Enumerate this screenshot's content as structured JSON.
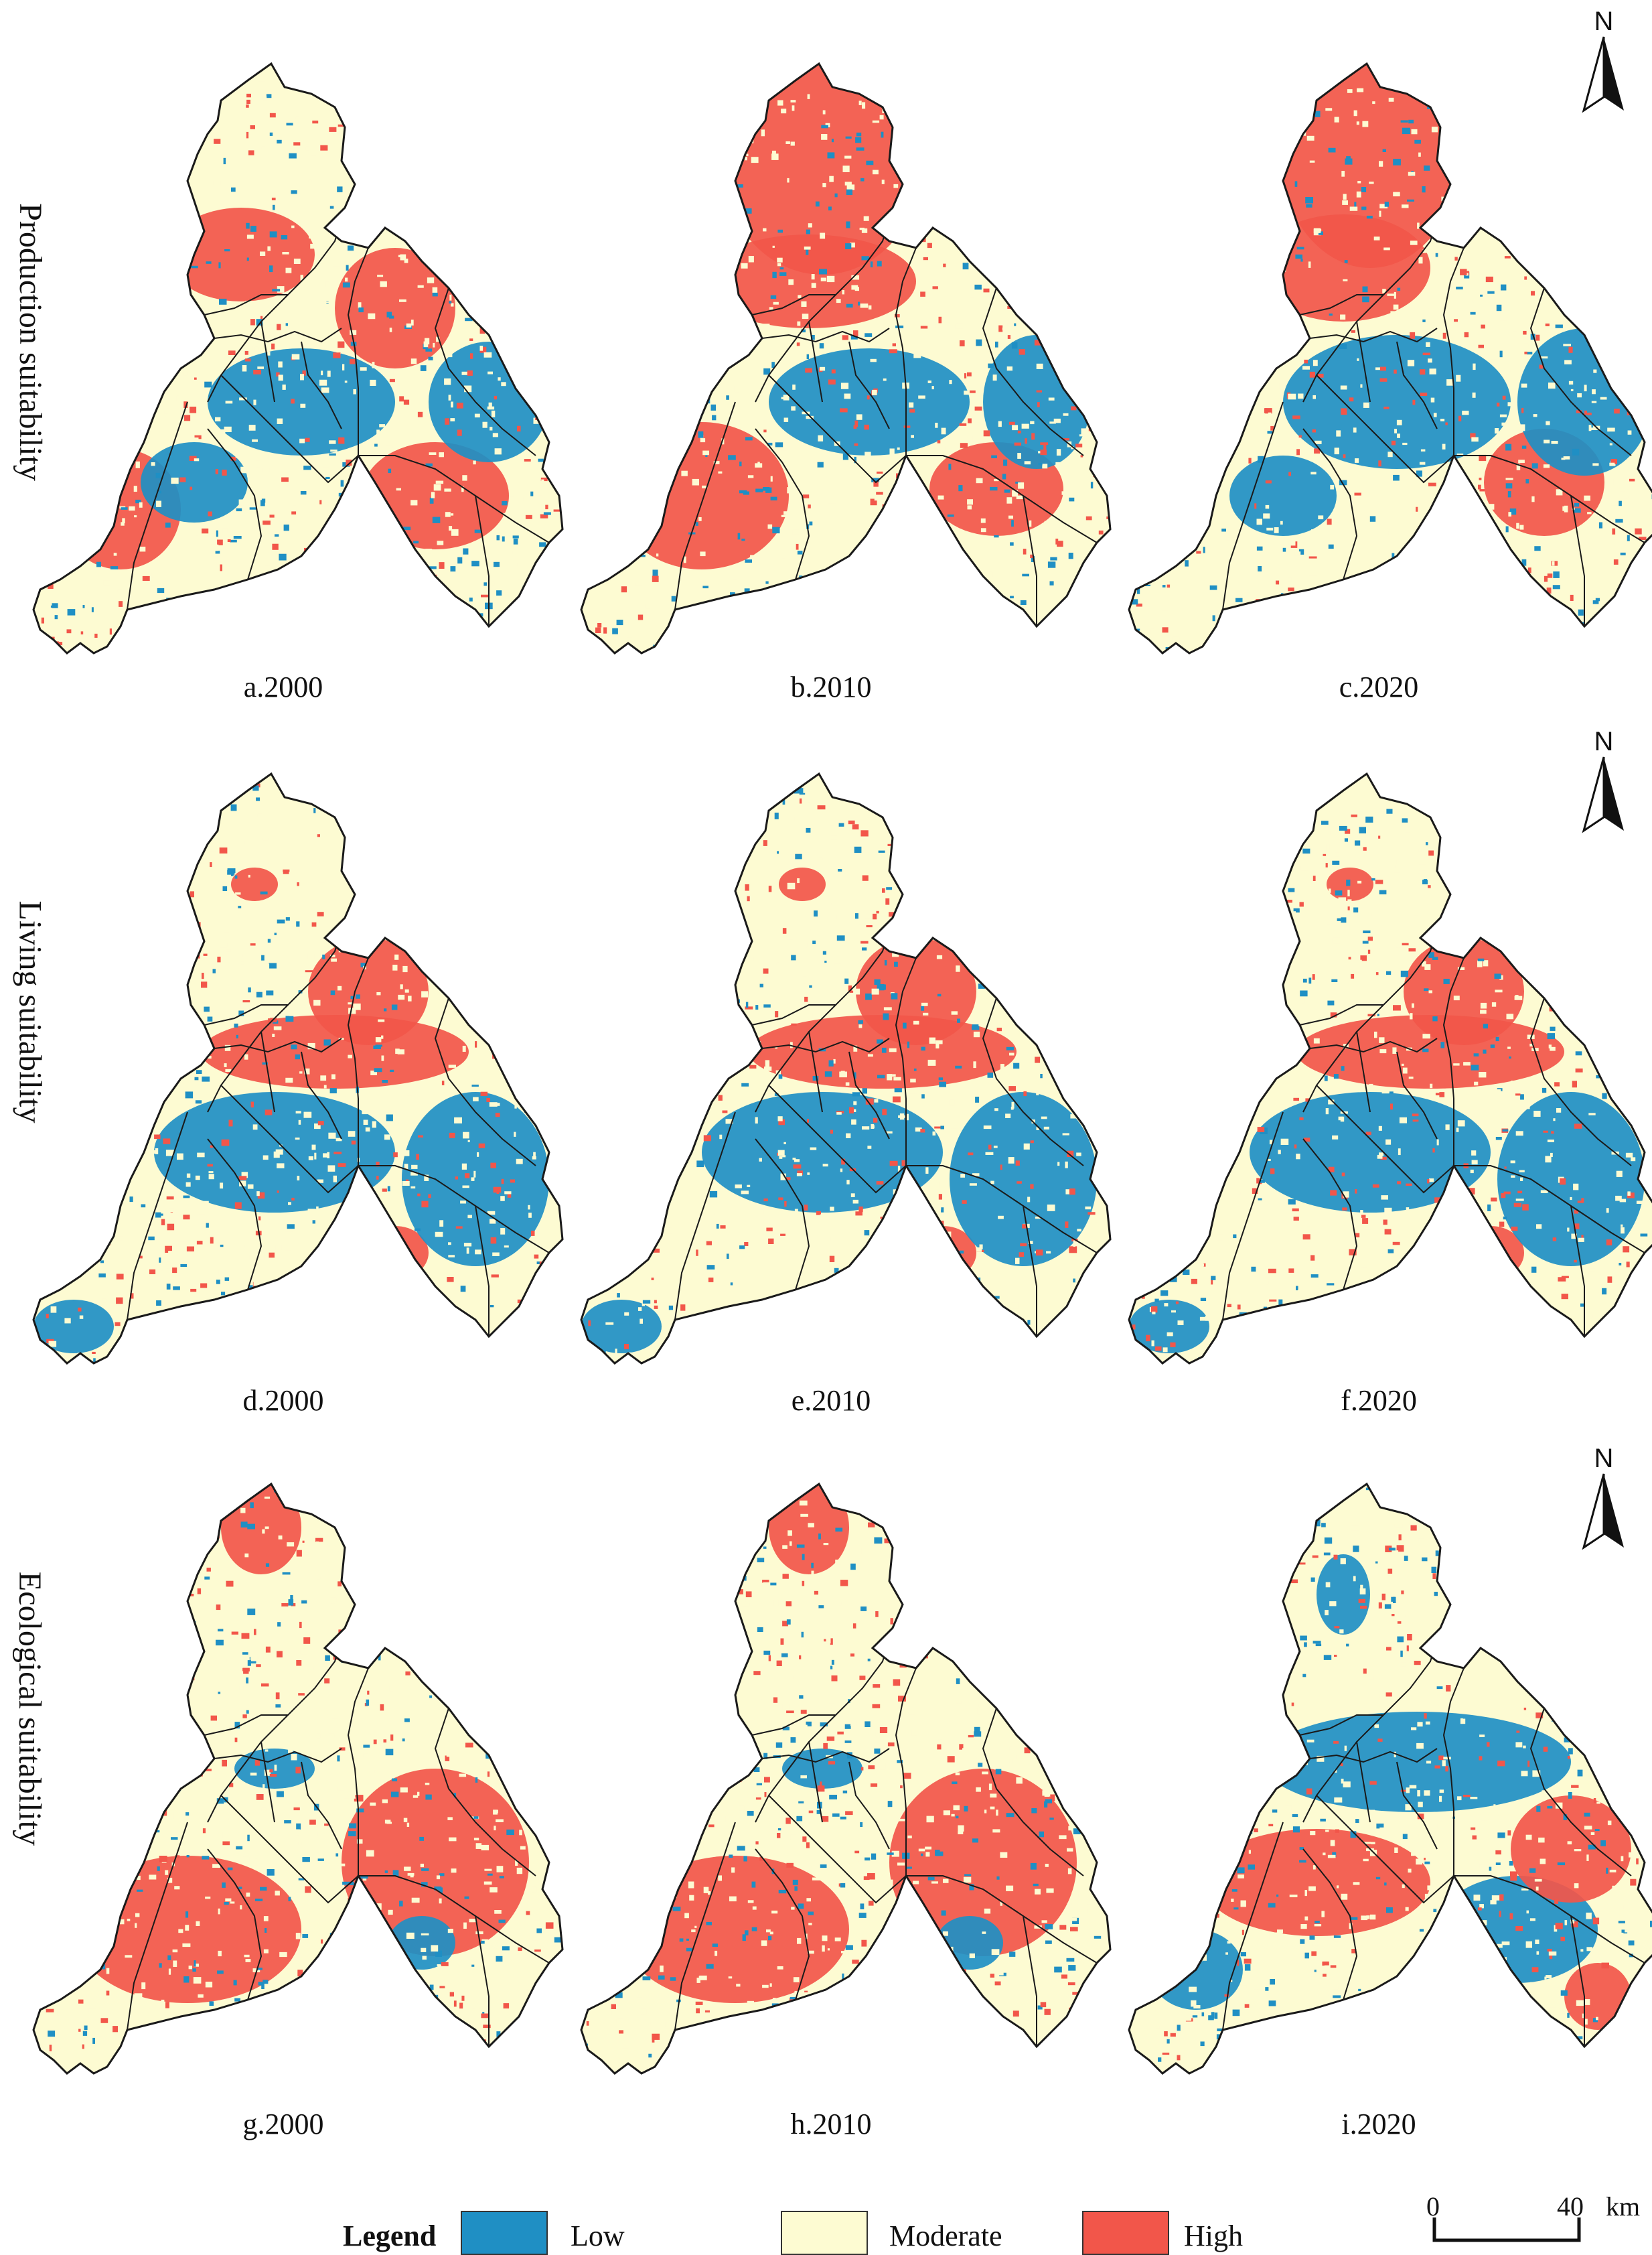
{
  "rows": [
    {
      "label": "Production suitability",
      "panels": [
        {
          "caption": "a.2000",
          "dominant": "mixed-south-high"
        },
        {
          "caption": "b.2010",
          "dominant": "north-high"
        },
        {
          "caption": "c.2020",
          "dominant": "north-solid-high"
        }
      ]
    },
    {
      "label": "Living suitability",
      "panels": [
        {
          "caption": "d.2000",
          "dominant": "center-high-south-low"
        },
        {
          "caption": "e.2010",
          "dominant": "center-high-south-low"
        },
        {
          "caption": "f.2020",
          "dominant": "center-high-south-low"
        }
      ]
    },
    {
      "label": "Ecological suitability",
      "panels": [
        {
          "caption": "g.2000",
          "dominant": "south-high"
        },
        {
          "caption": "h.2010",
          "dominant": "south-high"
        },
        {
          "caption": "i.2020",
          "dominant": "center-low"
        }
      ]
    }
  ],
  "north_arrow": {
    "letter": "N"
  },
  "legend": {
    "title": "Legend",
    "items": [
      {
        "label": "Low",
        "color": "#1f8fc4"
      },
      {
        "label": "Moderate",
        "color": "#fdfbd2"
      },
      {
        "label": "High",
        "color": "#f2564a"
      }
    ]
  },
  "scale_bar": {
    "start": "0",
    "end": "40",
    "unit": "km"
  },
  "colors": {
    "boundary": "#1a1a1a"
  }
}
